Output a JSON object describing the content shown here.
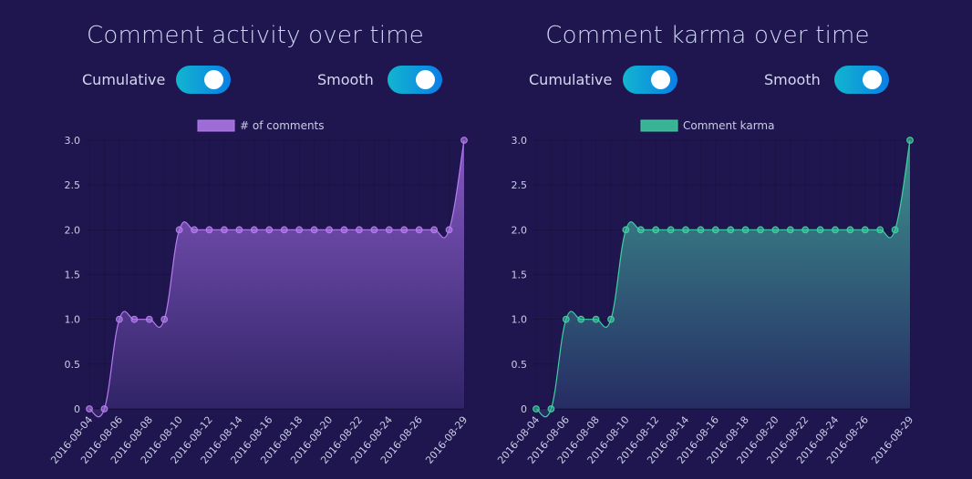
{
  "charts": [
    {
      "title": "Comment activity over time",
      "toggles": [
        {
          "label": "Cumulative",
          "on": true
        },
        {
          "label": "Smooth",
          "on": true
        }
      ]
    },
    {
      "title": "Comment karma over time",
      "toggles": [
        {
          "label": "Cumulative",
          "on": true
        },
        {
          "label": "Smooth",
          "on": true
        }
      ]
    }
  ],
  "colors": {
    "background": "#1f164f",
    "activity_line": "#b57bef",
    "activity_fill_top": "#8a5cc7",
    "karma_line": "#3dcfa0",
    "karma_fill_top": "#3e9b93",
    "toggle_start": "#12b5cf",
    "toggle_end": "#0a7fe6"
  },
  "chart_data": [
    {
      "type": "area",
      "title": "Comment activity over time",
      "legend": [
        "# of comments"
      ],
      "legend_position": "top",
      "xlabel": "",
      "ylabel": "",
      "ylim": [
        0,
        3
      ],
      "yticks": [
        "0",
        "0.5",
        "1.0",
        "1.5",
        "2.0",
        "2.5",
        "3.0"
      ],
      "xticks": [
        "2016-08-04",
        "2016-08-06",
        "2016-08-08",
        "2016-08-10",
        "2016-08-12",
        "2016-08-14",
        "2016-08-16",
        "2016-08-18",
        "2016-08-20",
        "2016-08-22",
        "2016-08-24",
        "2016-08-26",
        "2016-08-29"
      ],
      "grid": true,
      "smooth": true,
      "cumulative": true,
      "series": [
        {
          "name": "# of comments",
          "x": [
            "2016-08-04",
            "2016-08-05",
            "2016-08-06",
            "2016-08-07",
            "2016-08-08",
            "2016-08-09",
            "2016-08-10",
            "2016-08-11",
            "2016-08-12",
            "2016-08-13",
            "2016-08-14",
            "2016-08-15",
            "2016-08-16",
            "2016-08-17",
            "2016-08-18",
            "2016-08-19",
            "2016-08-20",
            "2016-08-21",
            "2016-08-22",
            "2016-08-23",
            "2016-08-24",
            "2016-08-25",
            "2016-08-26",
            "2016-08-27",
            "2016-08-28",
            "2016-08-29"
          ],
          "values": [
            0,
            0,
            1,
            1,
            1,
            1,
            2,
            2,
            2,
            2,
            2,
            2,
            2,
            2,
            2,
            2,
            2,
            2,
            2,
            2,
            2,
            2,
            2,
            2,
            2,
            3
          ]
        }
      ]
    },
    {
      "type": "area",
      "title": "Comment karma over time",
      "legend": [
        "Comment karma"
      ],
      "legend_position": "top",
      "xlabel": "",
      "ylabel": "",
      "ylim": [
        0,
        3
      ],
      "yticks": [
        "0",
        "0.5",
        "1.0",
        "1.5",
        "2.0",
        "2.5",
        "3.0"
      ],
      "xticks": [
        "2016-08-04",
        "2016-08-06",
        "2016-08-08",
        "2016-08-10",
        "2016-08-12",
        "2016-08-14",
        "2016-08-16",
        "2016-08-18",
        "2016-08-20",
        "2016-08-22",
        "2016-08-24",
        "2016-08-26",
        "2016-08-29"
      ],
      "grid": true,
      "smooth": true,
      "cumulative": true,
      "series": [
        {
          "name": "Comment karma",
          "x": [
            "2016-08-04",
            "2016-08-05",
            "2016-08-06",
            "2016-08-07",
            "2016-08-08",
            "2016-08-09",
            "2016-08-10",
            "2016-08-11",
            "2016-08-12",
            "2016-08-13",
            "2016-08-14",
            "2016-08-15",
            "2016-08-16",
            "2016-08-17",
            "2016-08-18",
            "2016-08-19",
            "2016-08-20",
            "2016-08-21",
            "2016-08-22",
            "2016-08-23",
            "2016-08-24",
            "2016-08-25",
            "2016-08-26",
            "2016-08-27",
            "2016-08-28",
            "2016-08-29"
          ],
          "values": [
            0,
            0,
            1,
            1,
            1,
            1,
            2,
            2,
            2,
            2,
            2,
            2,
            2,
            2,
            2,
            2,
            2,
            2,
            2,
            2,
            2,
            2,
            2,
            2,
            2,
            3
          ]
        }
      ]
    }
  ]
}
